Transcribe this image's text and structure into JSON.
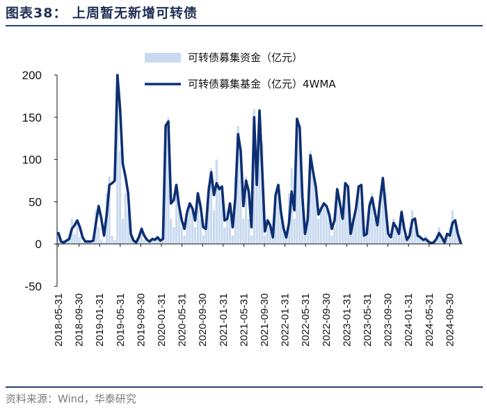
{
  "header": {
    "title": "图表38：  上周暂无新增可转债"
  },
  "footer": {
    "source": "资料来源：Wind，华泰研究"
  },
  "colors": {
    "bar": "#c9daf0",
    "line": "#0d2f73",
    "rule": "#1f3f7a"
  },
  "chart_data": {
    "type": "bar+line",
    "title": "上周暂无新增可转债",
    "xlabel": "",
    "ylabel": "",
    "ylim": [
      -50,
      200
    ],
    "yticks": [
      "200",
      "150",
      "100",
      "50",
      "0",
      "-50"
    ],
    "grid": false,
    "legend_position": "top",
    "x_tick_labels": [
      "2018-05-31",
      "2018-09-30",
      "2019-01-31",
      "2019-05-31",
      "2019-09-30",
      "2020-01-31",
      "2020-05-31",
      "2020-09-30",
      "2021-01-31",
      "2021-05-31",
      "2021-09-30",
      "2022-01-31",
      "2022-05-31",
      "2022-09-30",
      "2023-01-31",
      "2023-05-31",
      "2023-09-30",
      "2024-01-31",
      "2024-05-31",
      "2024-09-30"
    ],
    "series": [
      {
        "name": "可转债募集资金（亿元）",
        "kind": "bar",
        "note": "weekly issuance, approximate shape",
        "values": [
          12,
          4,
          2,
          3,
          5,
          30,
          12,
          28,
          8,
          2,
          3,
          5,
          2,
          4,
          40,
          20,
          5,
          2,
          60,
          80,
          10,
          5,
          200,
          110,
          30,
          60,
          40,
          10,
          2,
          3,
          8,
          20,
          5,
          2,
          3,
          5,
          3,
          8,
          2,
          4,
          140,
          150,
          30,
          20,
          70,
          40,
          20,
          10,
          30,
          50,
          40,
          20,
          60,
          30,
          10,
          20,
          70,
          90,
          40,
          100,
          70,
          60,
          20,
          40,
          30,
          10,
          80,
          140,
          100,
          30,
          80,
          30,
          10,
          160,
          80,
          150,
          120,
          10,
          30,
          20,
          10,
          50,
          70,
          40,
          20,
          10,
          60,
          90,
          30,
          150,
          140,
          60,
          10,
          30,
          110,
          80,
          60,
          30,
          40,
          50,
          40,
          30,
          10,
          20,
          60,
          40,
          30,
          70,
          60,
          10,
          30,
          40,
          70,
          50,
          10,
          20,
          50,
          60,
          30,
          20,
          40,
          80,
          60,
          10,
          5,
          30,
          20,
          10,
          40,
          10,
          5,
          20,
          40,
          20,
          10,
          10,
          5,
          10,
          2,
          3,
          5,
          10,
          20,
          5,
          2,
          10,
          20,
          40,
          30,
          10,
          2
        ]
      },
      {
        "name": "可转债募集基金（亿元）4WMA",
        "kind": "line",
        "values": [
          13,
          3,
          2,
          4,
          6,
          18,
          22,
          28,
          20,
          8,
          3,
          3,
          3,
          4,
          25,
          45,
          30,
          10,
          35,
          70,
          72,
          75,
          200,
          160,
          95,
          80,
          60,
          12,
          4,
          2,
          8,
          18,
          10,
          5,
          3,
          6,
          5,
          8,
          4,
          6,
          140,
          145,
          48,
          52,
          70,
          45,
          28,
          18,
          38,
          48,
          42,
          28,
          60,
          45,
          20,
          18,
          62,
          85,
          58,
          72,
          65,
          68,
          28,
          30,
          48,
          20,
          55,
          130,
          110,
          45,
          75,
          62,
          20,
          150,
          70,
          158,
          88,
          15,
          28,
          22,
          8,
          58,
          70,
          38,
          18,
          8,
          25,
          62,
          40,
          148,
          138,
          55,
          12,
          30,
          105,
          85,
          68,
          35,
          42,
          48,
          45,
          35,
          18,
          28,
          65,
          48,
          30,
          72,
          68,
          12,
          28,
          42,
          68,
          70,
          10,
          12,
          45,
          55,
          38,
          22,
          52,
          78,
          45,
          12,
          8,
          25,
          20,
          12,
          38,
          18,
          5,
          10,
          28,
          30,
          10,
          8,
          5,
          6,
          3,
          1,
          2,
          6,
          13,
          8,
          2,
          12,
          10,
          25,
          28,
          12,
          2
        ]
      }
    ]
  }
}
